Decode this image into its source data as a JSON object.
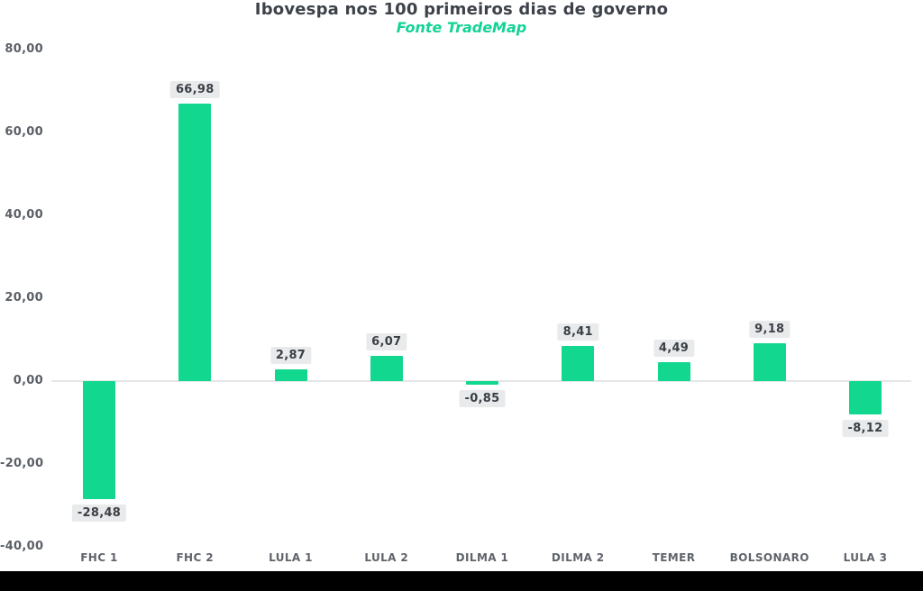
{
  "page": {
    "background": "#ffffff",
    "footer_bar_color": "#000000"
  },
  "chart_data": {
    "type": "bar",
    "title": "Ibovespa nos 100 primeiros dias de governo",
    "subtitle": "Fonte TradeMap",
    "categories": [
      "FHC 1",
      "FHC 2",
      "LULA 1",
      "LULA 2",
      "DILMA 1",
      "DILMA 2",
      "TEMER",
      "BOLSONARO",
      "LULA 3"
    ],
    "values": [
      -28.48,
      66.98,
      2.87,
      6.07,
      -0.85,
      8.41,
      4.49,
      9.18,
      -8.12
    ],
    "value_labels": [
      "-28,48",
      "66,98",
      "2,87",
      "6,07",
      "-0,85",
      "8,41",
      "4,49",
      "9,18",
      "-8,12"
    ],
    "ylim": [
      -40,
      80
    ],
    "yticks": [
      80,
      60,
      40,
      20,
      0,
      -20,
      -40
    ],
    "ytick_labels": [
      "80,00",
      "60,00",
      "40,00",
      "20,00",
      "0,00",
      "-20,00",
      "-40,00"
    ],
    "xlabel": "",
    "ylabel": "",
    "grid": "zero-line-only",
    "legend": "none",
    "colors": {
      "bar": "#12d78e",
      "title_text": "#3d424a",
      "subtitle_text": "#14d395",
      "axis_text": "#5a5f66",
      "value_label_text": "#3b4046",
      "value_label_bg": "#e9eaeb",
      "zero_line": "#e4e6e8"
    }
  }
}
